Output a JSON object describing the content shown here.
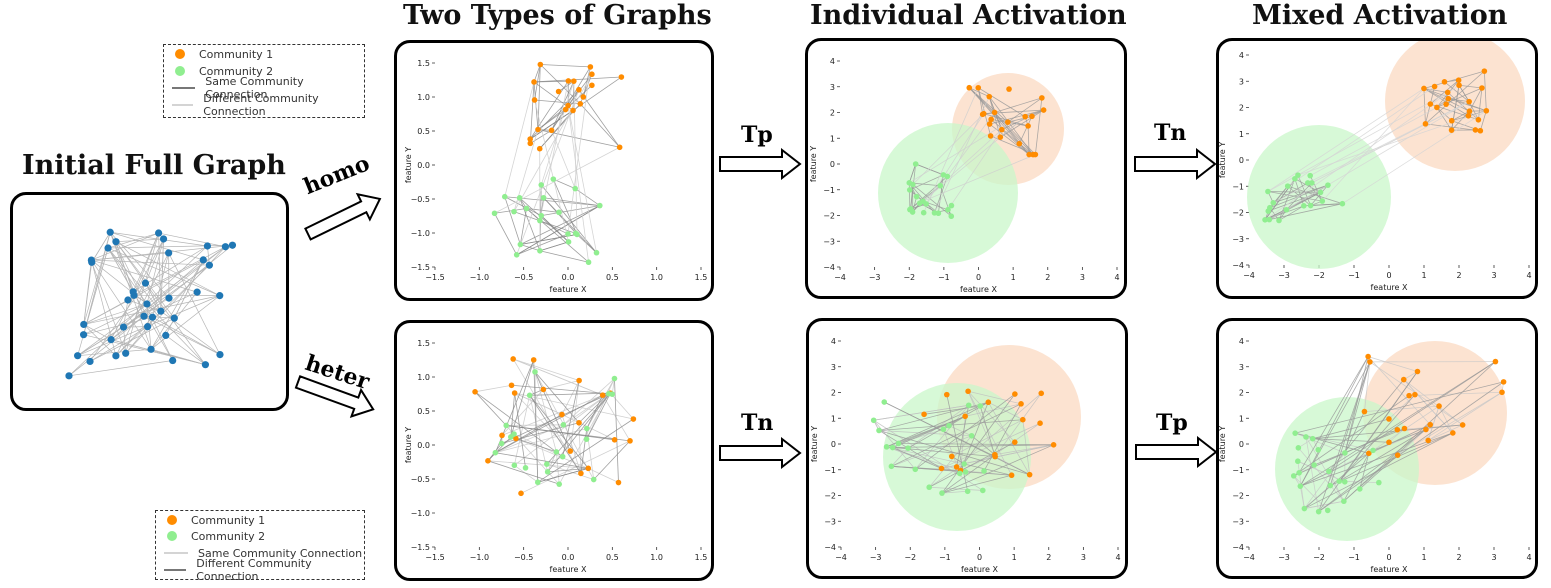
{
  "titles": {
    "initial": "Initial Full Graph",
    "two_types": "Two Types of Graphs",
    "individual": "Individual Activation",
    "mixed": "Mixed Activation"
  },
  "arrows": {
    "homo": "homo",
    "heter": "heter",
    "row1_mid": "Tp",
    "row1_right": "Tn",
    "row2_mid": "Tn",
    "row2_right": "Tp"
  },
  "legend_top": {
    "c1": "Community 1",
    "c2": "Community 2",
    "same": "Same Community Connection",
    "diff": "Different Community Connection"
  },
  "legend_bottom": {
    "c1": "Community 1",
    "c2": "Community 2",
    "same": "Same Community Connection",
    "diff": "Different Community Connection"
  },
  "colors": {
    "community1": "#ff8c00",
    "community2": "#90ee90",
    "initial_node": "#1f77b4",
    "circle1": "#fbd9c2",
    "circle2": "#c9f7c9"
  },
  "plots": {
    "homo": {
      "xlabel": "feature X",
      "ylabel": "feature Y",
      "xticks": [
        "−1.5",
        "−1.0",
        "−0.5",
        "0.0",
        "0.5",
        "1.0",
        "1.5"
      ],
      "yticks": [
        "1.5",
        "1.0",
        "0.5",
        "0.0",
        "−0.5",
        "−1.0",
        "−1.5"
      ]
    },
    "heter": {
      "xlabel": "feature X",
      "ylabel": "feature Y",
      "xticks": [
        "−1.5",
        "−1.0",
        "−0.5",
        "0.0",
        "0.5",
        "1.0",
        "1.5"
      ],
      "yticks": [
        "1.5",
        "1.0",
        "0.5",
        "0.0",
        "−0.5",
        "−1.0",
        "−1.5"
      ]
    },
    "ind_homo": {
      "xlabel": "feature X",
      "ylabel": "feature Y",
      "xticks": [
        "−4",
        "−3",
        "−2",
        "−1",
        "0",
        "1",
        "2",
        "3",
        "4"
      ],
      "yticks": [
        "4",
        "3",
        "2",
        "1",
        "0",
        "−1",
        "−2",
        "−3",
        "−4"
      ]
    },
    "mix_homo": {
      "xlabel": "feature X",
      "ylabel": "feature Y",
      "xticks": [
        "−4",
        "−3",
        "−2",
        "−1",
        "0",
        "1",
        "2",
        "3",
        "4"
      ],
      "yticks": [
        "4",
        "3",
        "2",
        "1",
        "0",
        "−1",
        "−2",
        "−3",
        "−4"
      ]
    },
    "ind_heter": {
      "xlabel": "feature X",
      "ylabel": "feature Y",
      "xticks": [
        "−4",
        "−3",
        "−2",
        "−1",
        "0",
        "1",
        "2",
        "3",
        "4"
      ],
      "yticks": [
        "4",
        "3",
        "2",
        "1",
        "0",
        "−1",
        "−2",
        "−3",
        "−4"
      ]
    },
    "mix_heter": {
      "xlabel": "feature X",
      "ylabel": "feature Y",
      "xticks": [
        "−4",
        "−3",
        "−2",
        "−1",
        "0",
        "1",
        "2",
        "3",
        "4"
      ],
      "yticks": [
        "4",
        "3",
        "2",
        "1",
        "0",
        "−1",
        "−2",
        "−3",
        "−4"
      ]
    }
  }
}
